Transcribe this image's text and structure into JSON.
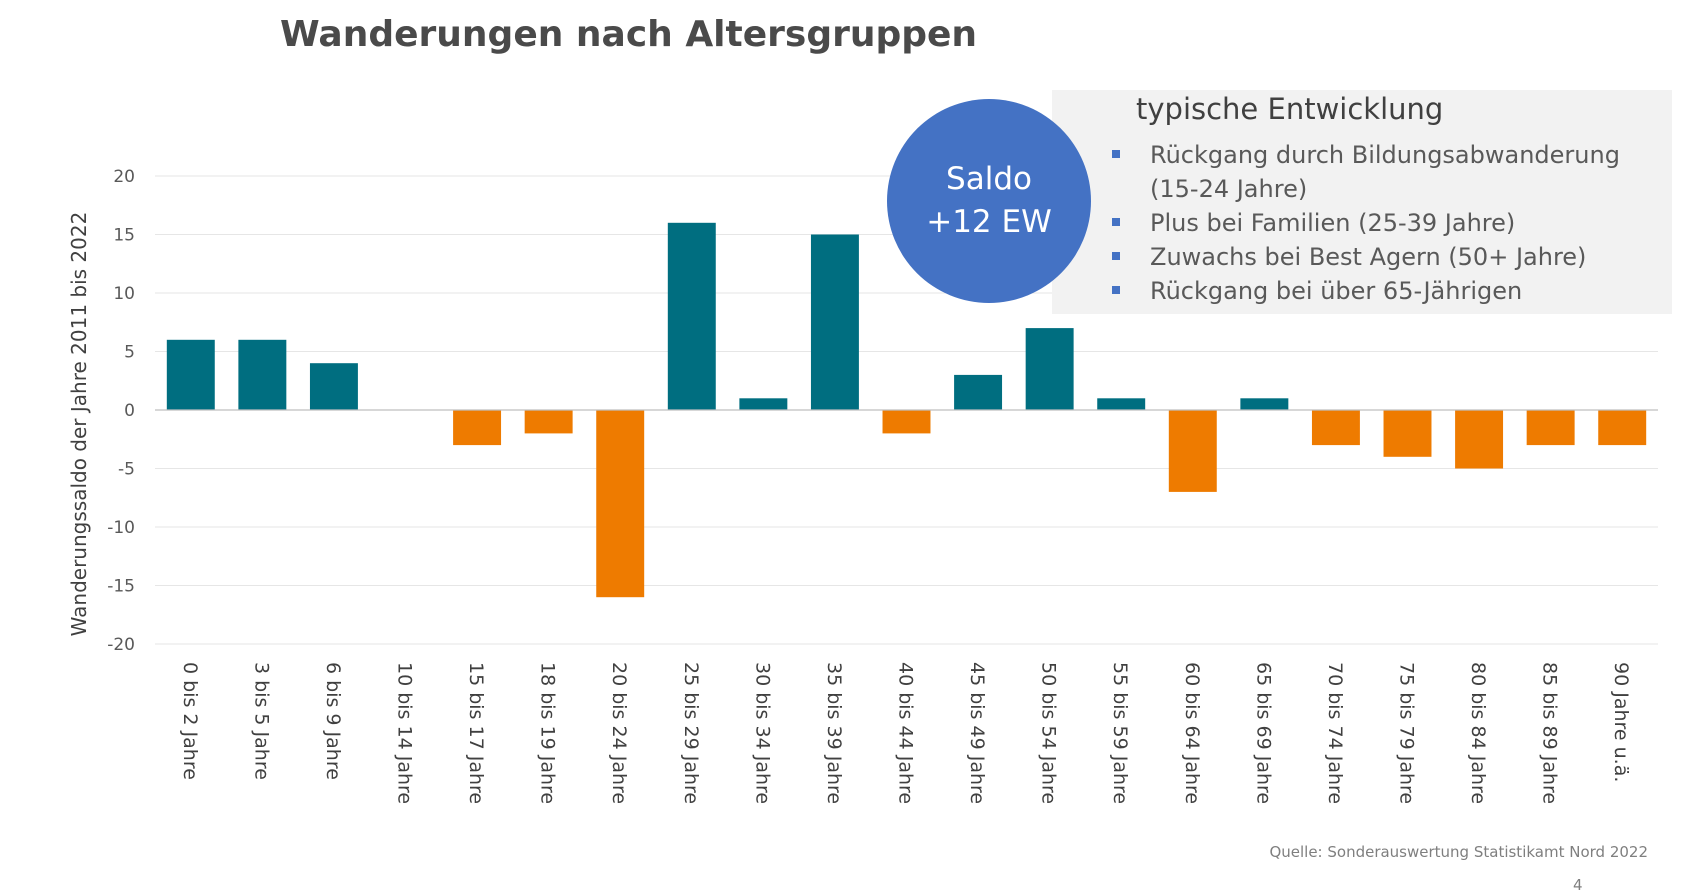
{
  "chart_data": {
    "type": "bar",
    "title": "Wanderungen nach Altersgruppen",
    "ylabel": "Wanderungssaldo der Jahre 2011 bis 2022",
    "xlabel": "",
    "ylim": [
      -20,
      20
    ],
    "yticks": [
      20,
      15,
      10,
      5,
      0,
      -5,
      -10,
      -15,
      -20
    ],
    "grid": true,
    "categories": [
      "0 bis 2 Jahre",
      "3 bis 5 Jahre",
      "6 bis 9 Jahre",
      "10 bis 14 Jahre",
      "15 bis 17 Jahre",
      "18 bis 19 Jahre",
      "20 bis 24 Jahre",
      "25 bis 29 Jahre",
      "30 bis 34 Jahre",
      "35 bis 39 Jahre",
      "40 bis 44 Jahre",
      "45 bis 49 Jahre",
      "50 bis 54 Jahre",
      "55 bis 59 Jahre",
      "60 bis 64 Jahre",
      "65 bis 69 Jahre",
      "70 bis 74 Jahre",
      "75 bis 79 Jahre",
      "80 bis 84 Jahre",
      "85 bis 89 Jahre",
      "90 Jahre u.ä."
    ],
    "values": [
      6,
      6,
      4,
      0,
      -3,
      -2,
      -16,
      16,
      1,
      15,
      -2,
      3,
      7,
      1,
      -7,
      1,
      -3,
      -4,
      -5,
      -3,
      -3
    ],
    "colors": {
      "positive": "#006e80",
      "negative": "#ee7b00"
    }
  },
  "info": {
    "heading": "typische Entwicklung",
    "items": [
      "Rückgang durch Bildungsabwanderung (15-24 Jahre)",
      "Plus bei Familien (25-39 Jahre)",
      "Zuwachs bei Best Agern (50+ Jahre)",
      "Rückgang bei über 65-Jährigen"
    ],
    "bullet_color": "#4472c4"
  },
  "saldo": {
    "line1": "Saldo",
    "line2": "+12 EW",
    "color": "#4472c4"
  },
  "source": "Quelle: Sonderauswertung Statistikamt Nord 2022",
  "page_number": "4"
}
